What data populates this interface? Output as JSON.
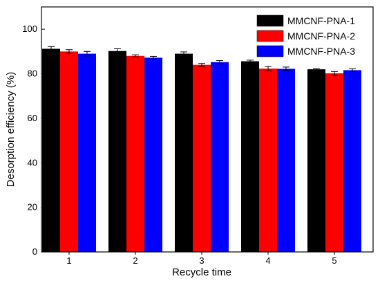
{
  "chart_data": {
    "type": "bar",
    "title": "",
    "xlabel": "Recycle time",
    "ylabel": "Desorption efficiency (%)",
    "ylim": [
      0,
      110
    ],
    "yticks": [
      0,
      20,
      40,
      60,
      80,
      100
    ],
    "categories": [
      "1",
      "2",
      "3",
      "4",
      "5"
    ],
    "series": [
      {
        "name": "MMCNF-PNA-1",
        "color": "#000000",
        "values": [
          91.2,
          90.2,
          89.0,
          85.6,
          82.0
        ],
        "errors": [
          1.0,
          1.0,
          0.8,
          0.5,
          0.3
        ]
      },
      {
        "name": "MMCNF-PNA-2",
        "color": "#ff0000",
        "values": [
          90.0,
          88.0,
          84.0,
          82.3,
          80.2
        ],
        "errors": [
          0.8,
          0.5,
          0.6,
          1.0,
          0.8
        ]
      },
      {
        "name": "MMCNF-PNA-3",
        "color": "#0000ff",
        "values": [
          89.0,
          87.2,
          85.2,
          82.2,
          81.6
        ],
        "errors": [
          1.0,
          0.6,
          0.7,
          0.8,
          0.6
        ]
      }
    ],
    "legend_position": "top-right",
    "grid": false
  }
}
